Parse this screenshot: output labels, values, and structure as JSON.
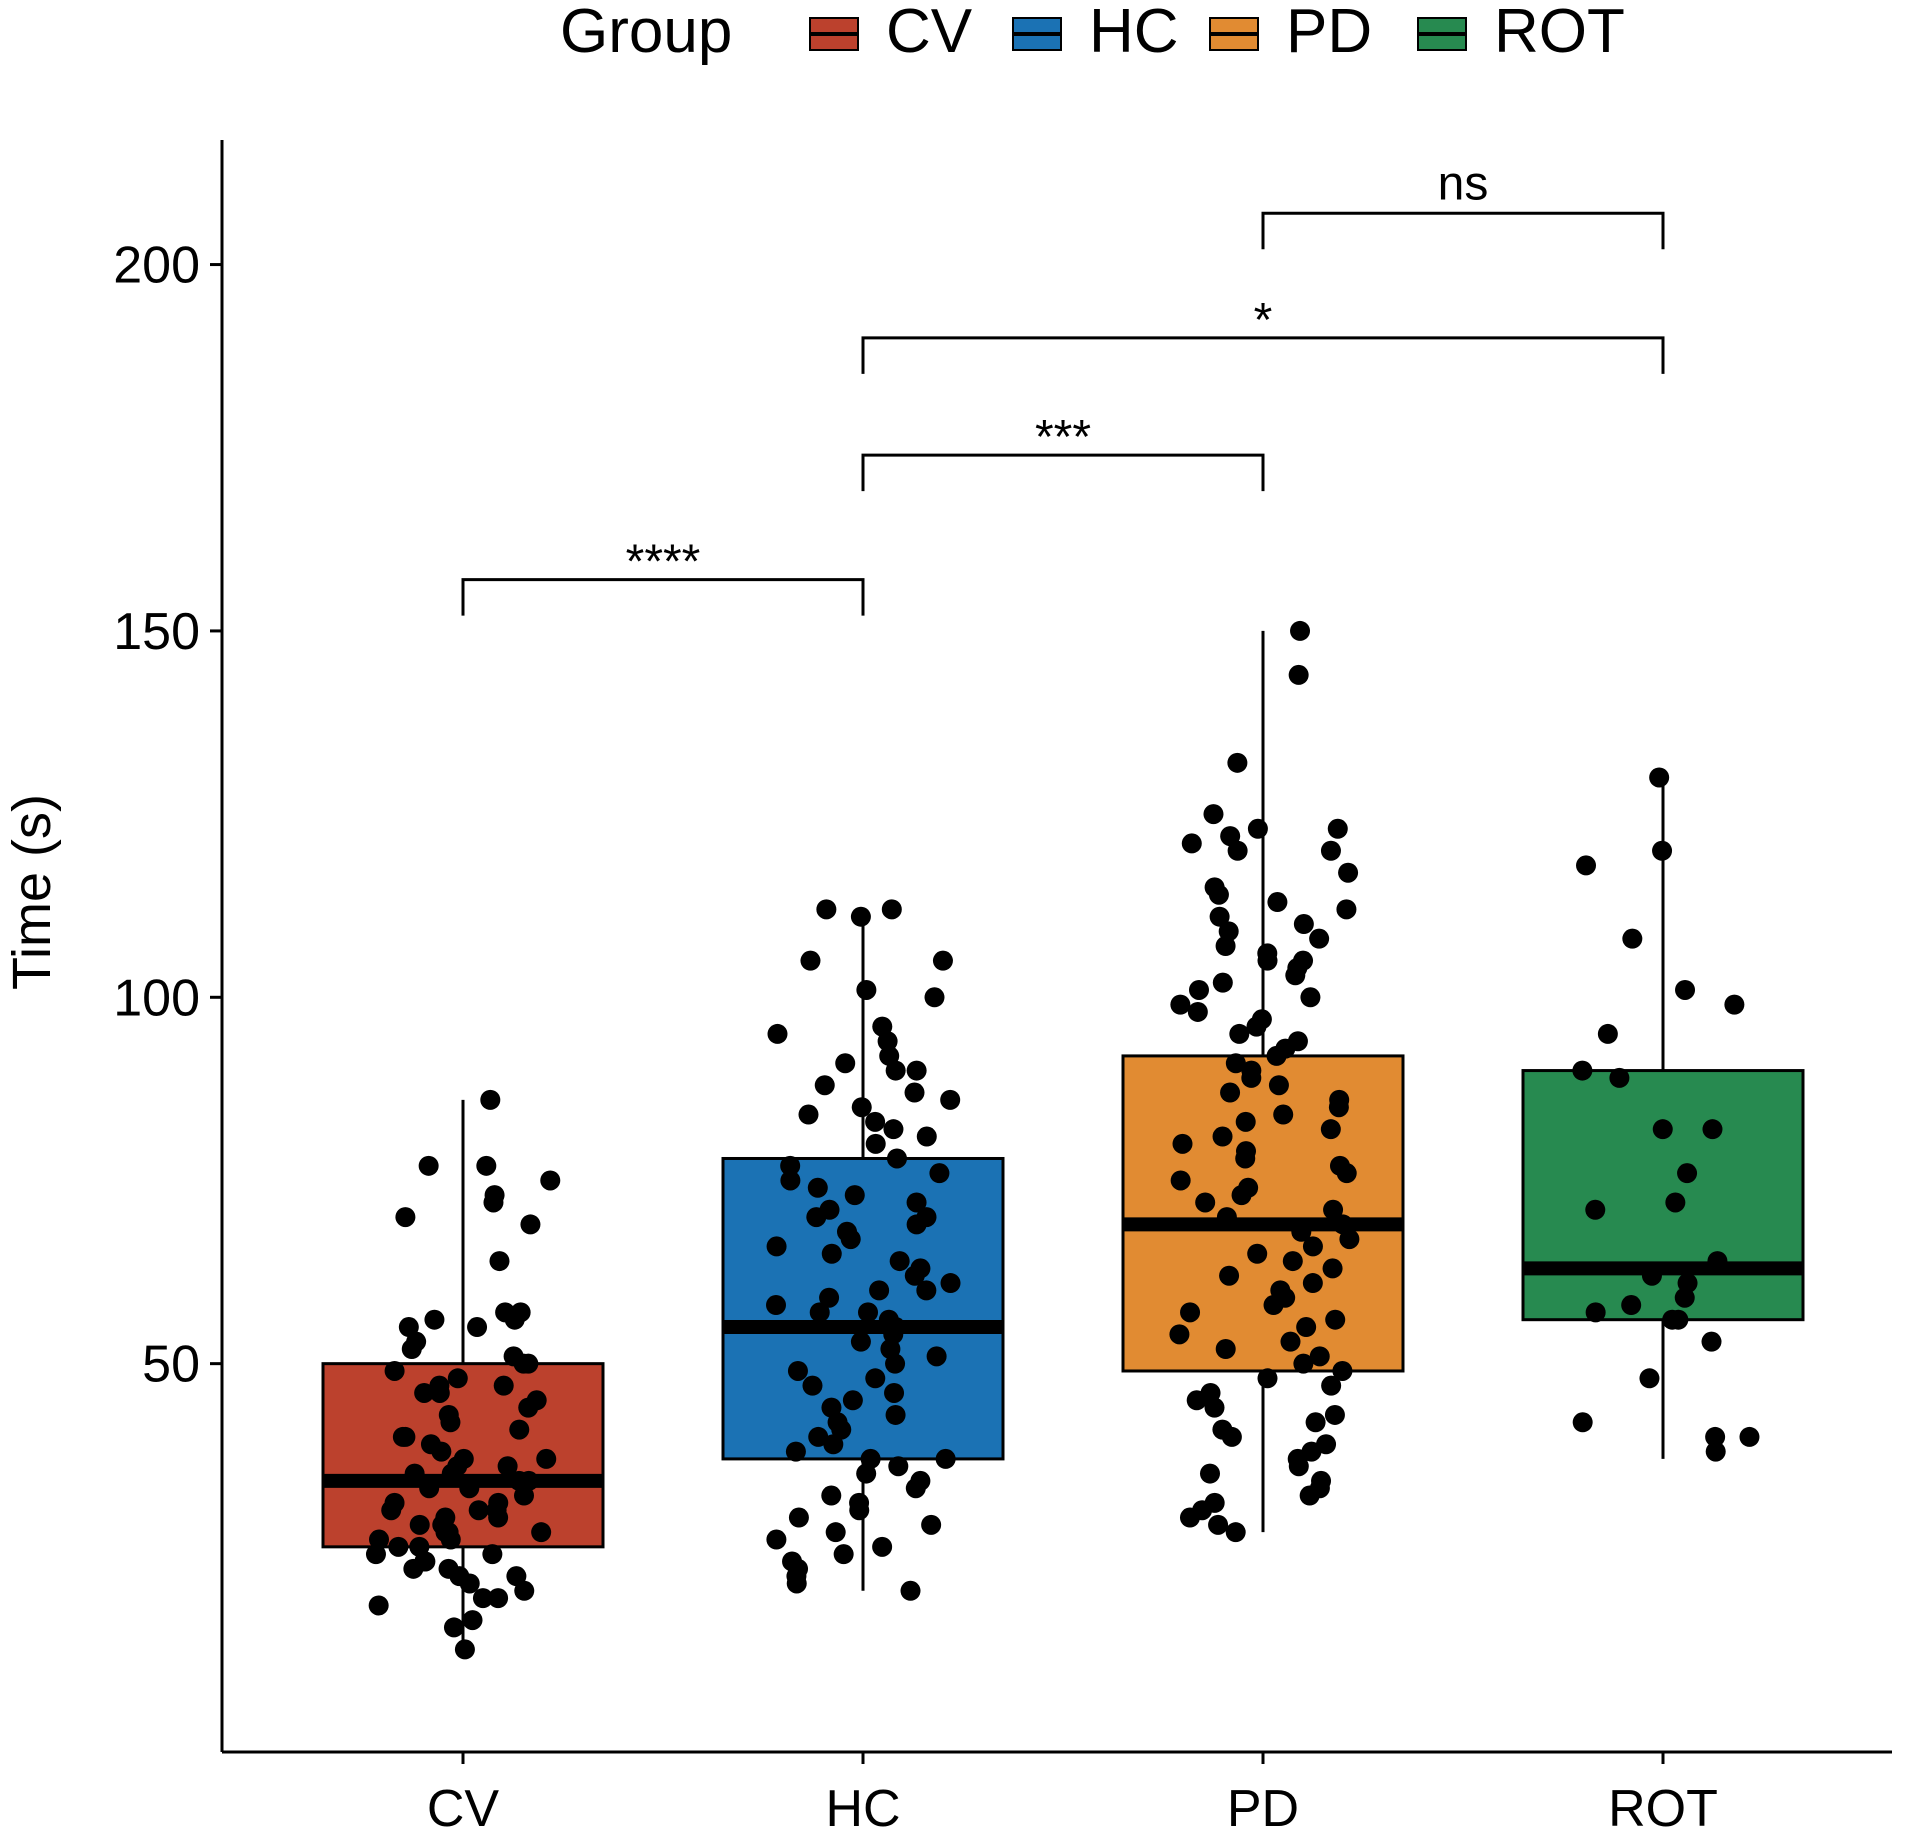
{
  "chart_data": {
    "type": "box",
    "title": "",
    "xlabel": "",
    "ylabel": "Time (s)",
    "ylim": [
      -3,
      217
    ],
    "yticks": [
      50,
      100,
      150,
      200
    ],
    "grid": false,
    "categories": [
      "CV",
      "HC",
      "PD",
      "ROT"
    ],
    "legend": {
      "title": "Group",
      "position": "top",
      "entries": [
        {
          "label": "CV",
          "color": "#bc412d"
        },
        {
          "label": "HC",
          "color": "#1b72b4"
        },
        {
          "label": "PD",
          "color": "#e18b32"
        },
        {
          "label": "ROT",
          "color": "#278a50"
        }
      ]
    },
    "boxes": [
      {
        "group": "CV",
        "whisker_low": 11,
        "q1": 25,
        "median": 34,
        "q3": 50,
        "whisker_high": 86,
        "color": "#bc412d"
      },
      {
        "group": "HC",
        "whisker_low": 19,
        "q1": 37,
        "median": 55,
        "q3": 78,
        "whisker_high": 112,
        "color": "#1b72b4"
      },
      {
        "group": "PD",
        "whisker_low": 27,
        "q1": 49,
        "median": 69,
        "q3": 92,
        "whisker_high": 150,
        "color": "#e18b32"
      },
      {
        "group": "ROT",
        "whisker_low": 37,
        "q1": 56,
        "median": 63,
        "q3": 90,
        "whisker_high": 130,
        "color": "#278a50"
      }
    ],
    "points": {
      "CV": [
        86,
        77,
        77,
        75,
        73,
        72,
        70,
        69,
        64,
        57,
        57,
        56,
        56,
        55,
        55,
        53,
        52,
        51,
        50,
        50,
        49,
        48,
        47,
        47,
        46,
        46,
        45,
        44,
        43,
        42,
        41,
        40,
        40,
        39,
        38,
        37,
        37,
        36,
        36,
        35,
        35,
        34,
        34,
        33,
        33,
        32,
        31,
        31,
        30,
        30,
        30,
        29,
        29,
        28,
        28,
        27,
        27,
        27,
        26,
        26,
        25,
        25,
        24,
        24,
        23,
        23,
        22,
        22,
        21,
        21,
        20,
        19,
        18,
        18,
        17,
        15,
        14,
        11
      ],
      "HC": [
        112,
        112,
        111,
        105,
        105,
        101,
        100,
        96,
        95,
        94,
        92,
        91,
        90,
        90,
        88,
        87,
        86,
        85,
        84,
        83,
        82,
        81,
        80,
        78,
        77,
        76,
        75,
        74,
        73,
        72,
        71,
        70,
        70,
        69,
        68,
        67,
        66,
        65,
        64,
        63,
        62,
        61,
        60,
        60,
        59,
        58,
        57,
        57,
        56,
        55,
        54,
        53,
        52,
        51,
        50,
        49,
        48,
        47,
        46,
        45,
        44,
        43,
        42,
        41,
        40,
        39,
        38,
        37,
        37,
        36,
        35,
        34,
        33,
        32,
        31,
        30,
        29,
        28,
        27,
        26,
        25,
        24,
        23,
        22,
        21,
        20,
        19
      ],
      "PD": [
        150,
        144,
        132,
        125,
        123,
        123,
        122,
        121,
        120,
        120,
        117,
        115,
        114,
        113,
        112,
        111,
        110,
        109,
        108,
        107,
        106,
        105,
        105,
        104,
        103,
        102,
        101,
        100,
        99,
        98,
        97,
        96,
        95,
        94,
        93,
        92,
        91,
        90,
        89,
        88,
        87,
        86,
        85,
        84,
        83,
        82,
        81,
        80,
        79,
        78,
        77,
        76,
        75,
        74,
        73,
        72,
        71,
        70,
        69,
        68,
        67,
        66,
        65,
        64,
        63,
        62,
        61,
        60,
        59,
        58,
        57,
        56,
        55,
        54,
        53,
        52,
        51,
        50,
        49,
        48,
        47,
        46,
        45,
        44,
        43,
        42,
        41,
        40,
        39,
        38,
        37,
        36,
        35,
        34,
        33,
        32,
        31,
        30,
        29,
        28,
        27
      ],
      "ROT": [
        130,
        120,
        118,
        108,
        101,
        99,
        95,
        90,
        89,
        82,
        82,
        76,
        72,
        71,
        64,
        62,
        61,
        59,
        58,
        57,
        56,
        56,
        53,
        48,
        42,
        40,
        40,
        38
      ]
    },
    "comparisons": [
      {
        "from": "CV",
        "to": "HC",
        "y": 157,
        "label": "****"
      },
      {
        "from": "HC",
        "to": "PD",
        "y": 174,
        "label": "***"
      },
      {
        "from": "HC",
        "to": "ROT",
        "y": 190,
        "label": "*"
      },
      {
        "from": "PD",
        "to": "ROT",
        "y": 207,
        "label": "ns"
      }
    ]
  }
}
